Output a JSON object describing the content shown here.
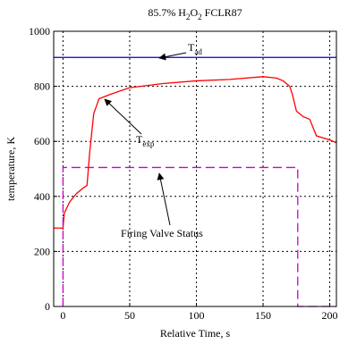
{
  "chart_data": {
    "type": "line",
    "title": [
      "85.7% H",
      "2",
      "O",
      "2",
      " FCLR87"
    ],
    "xlabel": "Relative Time, s",
    "ylabel": "temperature, K",
    "xlim": [
      -7,
      205
    ],
    "ylim": [
      0,
      1000
    ],
    "xticks": [
      0,
      50,
      100,
      150,
      200
    ],
    "yticks": [
      0,
      200,
      400,
      600,
      800,
      1000
    ],
    "grid": true,
    "series": [
      {
        "label": [
          "T",
          "ad"
        ],
        "color": "#0000cc",
        "dashed": false,
        "x": [
          -7,
          205
        ],
        "values": [
          905,
          905
        ]
      },
      {
        "label": [
          "T",
          "exp"
        ],
        "color": "#ff0000",
        "dashed": false,
        "x": [
          -7,
          0,
          1,
          5,
          10,
          15,
          18,
          20,
          23,
          27,
          35,
          50,
          75,
          100,
          125,
          150,
          160,
          165,
          170,
          172,
          175,
          180,
          185,
          190,
          200,
          205
        ],
        "values": [
          285,
          285,
          340,
          380,
          410,
          430,
          440,
          560,
          700,
          755,
          770,
          795,
          810,
          820,
          825,
          835,
          830,
          820,
          800,
          770,
          710,
          690,
          680,
          620,
          605,
          595
        ]
      },
      {
        "label": "Firing Valve Status",
        "color": "#cc00cc",
        "dashed": true,
        "x": [
          0,
          0,
          176,
          176,
          205
        ],
        "values": [
          0,
          505,
          505,
          0,
          0
        ]
      }
    ]
  }
}
